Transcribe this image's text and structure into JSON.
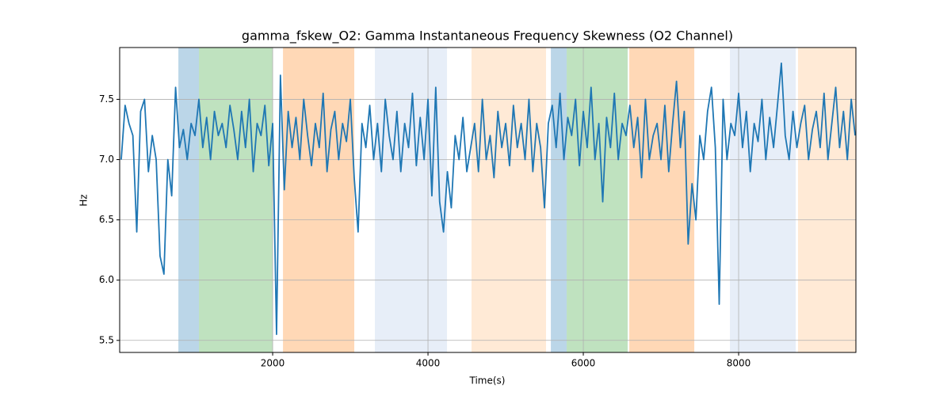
{
  "chart_data": {
    "type": "line",
    "title": "gamma_fskew_O2: Gamma Instantaneous Frequency Skewness (O2 Channel)",
    "xlabel": "Time(s)",
    "ylabel": "Hz",
    "xlim": [
      30,
      9510
    ],
    "ylim": [
      5.4,
      7.93
    ],
    "xticks": [
      2000,
      4000,
      6000,
      8000
    ],
    "yticks": [
      5.5,
      {
        "value": 6,
        "label": "6.0"
      },
      6.5,
      {
        "value": 7,
        "label": "7.0"
      },
      7.5
    ],
    "grid": true,
    "spans": [
      {
        "start": 786,
        "end": 1051,
        "color": "#1f77b4",
        "alpha": 0.3
      },
      {
        "start": 1051,
        "end": 2000,
        "color": "#2ca02c",
        "alpha": 0.3
      },
      {
        "start": 2133,
        "end": 3051,
        "color": "#ff7f0e",
        "alpha": 0.3
      },
      {
        "start": 3316,
        "end": 4245,
        "color": "#aec7e8",
        "alpha": 0.3
      },
      {
        "start": 4561,
        "end": 5520,
        "color": "#ffbb78",
        "alpha": 0.3
      },
      {
        "start": 5582,
        "end": 5786,
        "color": "#1f77b4",
        "alpha": 0.3
      },
      {
        "start": 5786,
        "end": 6571,
        "color": "#2ca02c",
        "alpha": 0.3
      },
      {
        "start": 6592,
        "end": 7429,
        "color": "#ff7f0e",
        "alpha": 0.3
      },
      {
        "start": 7888,
        "end": 8735,
        "color": "#aec7e8",
        "alpha": 0.3
      },
      {
        "start": 8765,
        "end": 9510,
        "color": "#ffbb78",
        "alpha": 0.3
      }
    ],
    "x": [
      50,
      100,
      150,
      200,
      250,
      300,
      350,
      400,
      450,
      500,
      550,
      600,
      650,
      700,
      750,
      800,
      850,
      900,
      950,
      1000,
      1050,
      1100,
      1150,
      1200,
      1250,
      1300,
      1350,
      1400,
      1450,
      1500,
      1550,
      1600,
      1650,
      1700,
      1750,
      1800,
      1850,
      1900,
      1950,
      2000,
      2050,
      2100,
      2150,
      2200,
      2250,
      2300,
      2350,
      2400,
      2450,
      2500,
      2550,
      2600,
      2650,
      2700,
      2750,
      2800,
      2850,
      2900,
      2950,
      3000,
      3050,
      3100,
      3150,
      3200,
      3250,
      3300,
      3350,
      3400,
      3450,
      3500,
      3550,
      3600,
      3650,
      3700,
      3750,
      3800,
      3850,
      3900,
      3950,
      4000,
      4050,
      4100,
      4150,
      4200,
      4250,
      4300,
      4350,
      4400,
      4450,
      4500,
      4550,
      4600,
      4650,
      4700,
      4750,
      4800,
      4850,
      4900,
      4950,
      5000,
      5050,
      5100,
      5150,
      5200,
      5250,
      5300,
      5350,
      5400,
      5450,
      5500,
      5550,
      5600,
      5650,
      5700,
      5750,
      5800,
      5850,
      5900,
      5950,
      6000,
      6050,
      6100,
      6150,
      6200,
      6250,
      6300,
      6350,
      6400,
      6450,
      6500,
      6550,
      6600,
      6650,
      6700,
      6750,
      6800,
      6850,
      6900,
      6950,
      7000,
      7050,
      7100,
      7150,
      7200,
      7250,
      7300,
      7350,
      7400,
      7450,
      7500,
      7550,
      7600,
      7650,
      7700,
      7750,
      7800,
      7850,
      7900,
      7950,
      8000,
      8050,
      8100,
      8150,
      8200,
      8250,
      8300,
      8350,
      8400,
      8450,
      8500,
      8550,
      8600,
      8650,
      8700,
      8750,
      8800,
      8850,
      8900,
      8950,
      9000,
      9050,
      9100,
      9150,
      9200,
      9250,
      9300,
      9350,
      9400,
      9450,
      9500
    ],
    "series": [
      {
        "name": "gamma_fskew_O2",
        "color": "#1f77b4",
        "values": [
          7.0,
          7.45,
          7.3,
          7.2,
          6.4,
          7.4,
          7.5,
          6.9,
          7.2,
          7.0,
          6.2,
          6.05,
          7.0,
          6.7,
          7.6,
          7.1,
          7.25,
          7.0,
          7.3,
          7.2,
          7.5,
          7.1,
          7.35,
          7.0,
          7.4,
          7.2,
          7.3,
          7.1,
          7.45,
          7.25,
          7.0,
          7.4,
          7.1,
          7.5,
          6.9,
          7.3,
          7.2,
          7.45,
          6.95,
          7.3,
          5.55,
          7.7,
          6.75,
          7.4,
          7.1,
          7.35,
          7.0,
          7.5,
          7.2,
          6.95,
          7.3,
          7.1,
          7.55,
          6.9,
          7.25,
          7.4,
          7.0,
          7.3,
          7.15,
          7.5,
          6.85,
          6.4,
          7.3,
          7.1,
          7.45,
          7.0,
          7.3,
          6.9,
          7.5,
          7.2,
          7.0,
          7.4,
          6.9,
          7.3,
          7.1,
          7.55,
          6.95,
          7.35,
          7.0,
          7.5,
          6.7,
          7.6,
          6.65,
          6.4,
          6.9,
          6.6,
          7.2,
          7.0,
          7.35,
          6.9,
          7.1,
          7.3,
          6.9,
          7.5,
          7.0,
          7.2,
          6.85,
          7.4,
          7.1,
          7.3,
          6.95,
          7.45,
          7.1,
          7.3,
          7.0,
          7.5,
          6.9,
          7.3,
          7.1,
          6.6,
          7.3,
          7.45,
          7.1,
          7.55,
          7.0,
          7.35,
          7.2,
          7.5,
          6.95,
          7.4,
          7.1,
          7.6,
          7.0,
          7.3,
          6.65,
          7.35,
          7.1,
          7.55,
          7.0,
          7.3,
          7.2,
          7.45,
          7.1,
          7.35,
          6.85,
          7.5,
          7.0,
          7.2,
          7.3,
          7.0,
          7.45,
          6.9,
          7.3,
          7.65,
          7.1,
          7.4,
          6.3,
          6.8,
          6.5,
          7.2,
          7.0,
          7.4,
          7.6,
          7.1,
          5.8,
          7.5,
          7.0,
          7.3,
          7.2,
          7.55,
          7.1,
          7.4,
          6.9,
          7.3,
          7.15,
          7.5,
          7.0,
          7.35,
          7.1,
          7.45,
          7.8,
          7.2,
          7.0,
          7.4,
          7.1,
          7.3,
          7.45,
          7.0,
          7.25,
          7.4,
          7.1,
          7.55,
          7.0,
          7.3,
          7.6,
          7.1,
          7.4,
          7.0,
          7.5,
          7.2
        ]
      }
    ]
  }
}
